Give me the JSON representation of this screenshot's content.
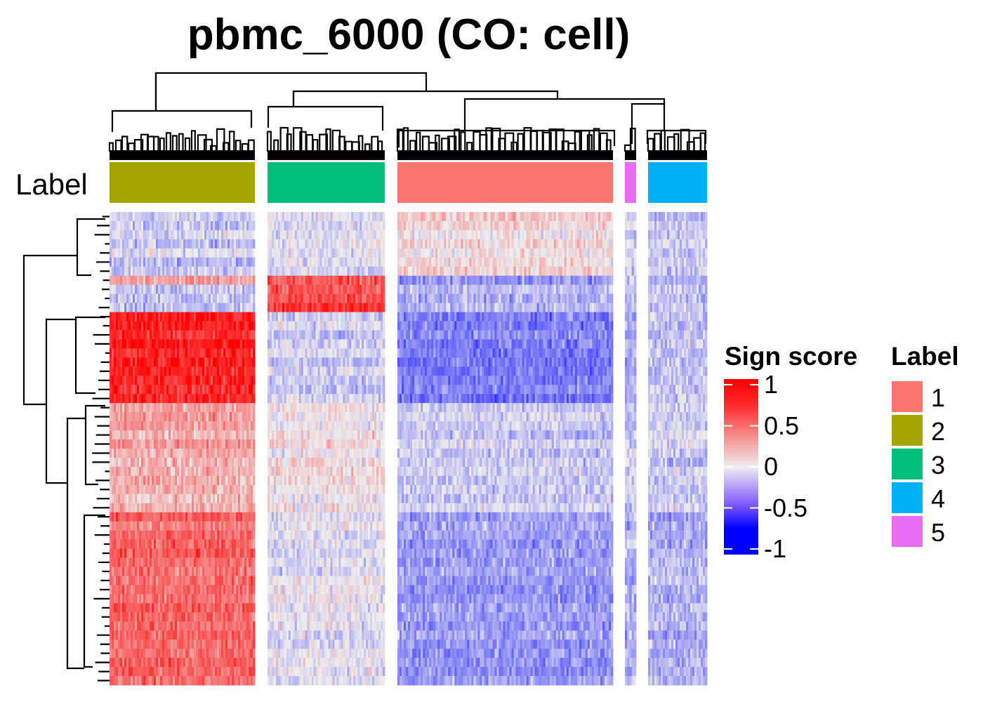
{
  "chart_data": {
    "type": "heatmap",
    "title": "pbmc_6000 (CO: cell)",
    "annotation_label": "Label",
    "colorbar": {
      "title": "Sign score",
      "ticks": [
        "1",
        "0.5",
        "0",
        "-0.5",
        "-1"
      ],
      "tick_values": [
        1,
        0.5,
        0,
        -0.5,
        -1
      ],
      "range": [
        -1,
        1
      ],
      "colors": {
        "low": "#0000ff",
        "mid": "#eeeeee",
        "high": "#ff0000"
      }
    },
    "label_legend": {
      "title": "Label",
      "items": [
        {
          "name": "1",
          "color": "#F8766D"
        },
        {
          "name": "2",
          "color": "#A3A500"
        },
        {
          "name": "3",
          "color": "#00BF7D"
        },
        {
          "name": "4",
          "color": "#00B0F6"
        },
        {
          "name": "5",
          "color": "#E76BF3"
        }
      ]
    },
    "column_groups_in_order": [
      "2",
      "3",
      "1",
      "5",
      "4"
    ],
    "row_blocks": [
      {
        "rows": 7,
        "mean_by_group": {
          "2": -0.15,
          "3": -0.05,
          "1": 0.1,
          "5": -0.1,
          "4": -0.15
        }
      },
      {
        "rows": 1,
        "mean_by_group": {
          "2": 0.45,
          "3": 0.7,
          "1": -0.35,
          "5": -0.2,
          "4": -0.25
        }
      },
      {
        "rows": 3,
        "mean_by_group": {
          "2": -0.2,
          "3": 0.7,
          "1": -0.2,
          "5": -0.15,
          "4": -0.2
        }
      },
      {
        "rows": 10,
        "mean_by_group": {
          "2": 0.85,
          "3": -0.15,
          "1": -0.45,
          "5": -0.3,
          "4": -0.15
        }
      },
      {
        "rows": 12,
        "mean_by_group": {
          "2": 0.3,
          "3": 0.05,
          "1": -0.15,
          "5": -0.15,
          "4": -0.15
        }
      },
      {
        "rows": 19,
        "mean_by_group": {
          "2": 0.55,
          "3": -0.05,
          "1": -0.35,
          "5": -0.25,
          "4": -0.25
        }
      }
    ]
  }
}
